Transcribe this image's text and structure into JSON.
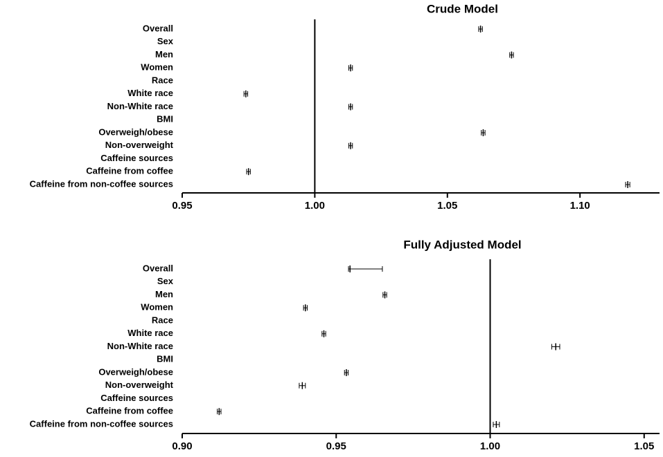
{
  "chart_data": [
    {
      "type": "forest",
      "title": "Crude Model",
      "categories": [
        "Overall",
        "Sex",
        "Men",
        "Women",
        "Race",
        "White race",
        "Non-White race",
        "BMI",
        "Overweigh/obese",
        "Non-overweight",
        "Caffeine sources",
        "Caffeine from coffee",
        "Caffeine from non-coffee sources"
      ],
      "values": [
        1.0625,
        null,
        1.0742,
        1.0135,
        null,
        0.974,
        1.0135,
        null,
        1.0635,
        1.0135,
        null,
        0.975,
        1.118
      ],
      "lower": [
        1.0618,
        null,
        1.0735,
        1.0128,
        null,
        0.9733,
        1.0128,
        null,
        1.0628,
        1.0128,
        null,
        0.9743,
        1.1172
      ],
      "upper": [
        1.0632,
        null,
        1.0749,
        1.0142,
        null,
        0.9747,
        1.0142,
        null,
        1.0642,
        1.0142,
        null,
        0.9757,
        1.1188
      ],
      "xlim": [
        0.95,
        1.13
      ],
      "xticks": [
        0.95,
        {
          "value": 1,
          "label": "1.00"
        },
        1.05,
        {
          "value": 1.1,
          "label": "1.10"
        }
      ],
      "reference_line": 1,
      "color": "#000000"
    },
    {
      "type": "forest",
      "title": "Fully Adjusted Model",
      "categories": [
        "Overall",
        "Sex",
        "Men",
        "Women",
        "Race",
        "White race",
        "Non-White race",
        "BMI",
        "Overweigh/obese",
        "Non-overweight",
        "Caffeine sources",
        "Caffeine from coffee",
        "Caffeine from non-coffee sources"
      ],
      "values": [
        0.9545,
        null,
        0.9658,
        0.94,
        null,
        0.946,
        1.0213,
        null,
        0.9533,
        0.939,
        null,
        0.912,
        1.002
      ],
      "lower": [
        0.954,
        null,
        0.9652,
        0.9394,
        null,
        0.9454,
        1.02,
        null,
        0.9527,
        0.938,
        null,
        0.9114,
        1.001
      ],
      "upper": [
        0.965,
        null,
        0.9664,
        0.9406,
        null,
        0.9466,
        1.0226,
        null,
        0.9539,
        0.94,
        null,
        0.9126,
        1.003
      ],
      "xlim": [
        {
          "value": 0.9,
          "label": "0.90"
        },
        1.055
      ],
      "xticks": [
        {
          "value": 0.9,
          "label": "0.90"
        },
        0.95,
        {
          "value": 1,
          "label": "1.00"
        },
        1.05
      ],
      "reference_line": 1,
      "color": "#000000"
    }
  ]
}
